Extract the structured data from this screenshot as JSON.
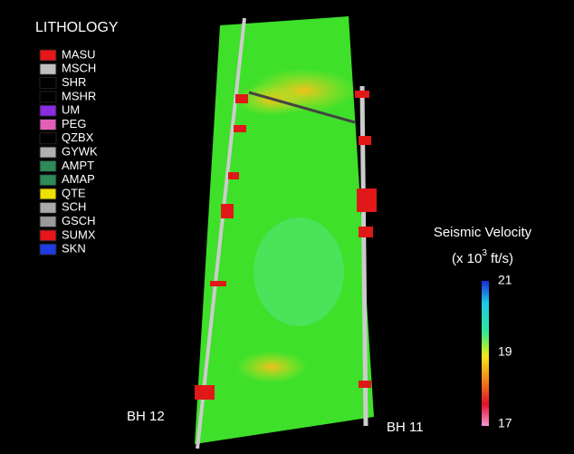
{
  "legend": {
    "title": "LITHOLOGY",
    "items": [
      {
        "label": "MASU",
        "color": "#e8161b"
      },
      {
        "label": "MSCH",
        "color": "#c0c0c0"
      },
      {
        "label": "SHR",
        "color": "#000000"
      },
      {
        "label": "MSHR",
        "color": "#000000"
      },
      {
        "label": "UM",
        "color": "#8a2be2"
      },
      {
        "label": "PEG",
        "color": "#e35fb5"
      },
      {
        "label": "QZBX",
        "color": "#000000"
      },
      {
        "label": "GYWK",
        "color": "#b0b0b0"
      },
      {
        "label": "AMPT",
        "color": "#2e8b57"
      },
      {
        "label": "AMAP",
        "color": "#2e8b57"
      },
      {
        "label": "QTE",
        "color": "#f0e000"
      },
      {
        "label": "SCH",
        "color": "#a9a9a9"
      },
      {
        "label": "GSCH",
        "color": "#999999"
      },
      {
        "label": "SUMX",
        "color": "#e8161b"
      },
      {
        "label": "SKN",
        "color": "#1f3ce0"
      }
    ]
  },
  "colorbar": {
    "title": "Seismic Velocity",
    "units_prefix": "(x 10",
    "units_exponent": "3",
    "units_suffix": " ft/s)",
    "ticks": [
      21,
      19,
      17
    ]
  },
  "boreholes": [
    "BH 12",
    "BH 11"
  ]
}
